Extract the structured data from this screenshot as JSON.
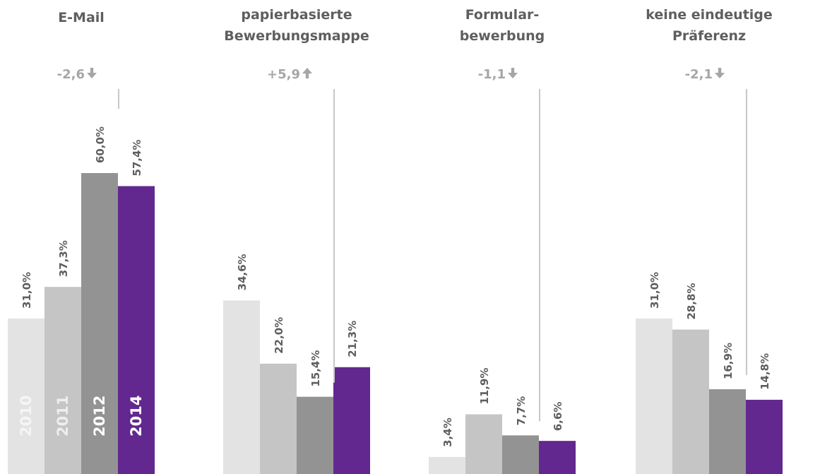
{
  "chart_data": {
    "type": "bar",
    "categories": [
      [
        "E-Mail"
      ],
      [
        "papierbasierte",
        "Bewerbungsmappe"
      ],
      [
        "Formular-",
        "bewerbung"
      ],
      [
        "keine eindeutige",
        "Präferenz"
      ]
    ],
    "series": [
      {
        "name": "2010",
        "color": "#e3e3e3",
        "label_color": "#f5f5f5",
        "values": [
          31.0,
          34.6,
          3.4,
          31.0
        ],
        "value_labels": [
          "31,0%",
          "34,6%",
          "3,4%",
          "31,0%"
        ]
      },
      {
        "name": "2011",
        "color": "#c5c5c6",
        "label_color": "#eeeeee",
        "values": [
          37.3,
          22.0,
          11.9,
          28.8
        ],
        "value_labels": [
          "37,3%",
          "22,0%",
          "11,9%",
          "28,8%"
        ]
      },
      {
        "name": "2012",
        "color": "#939394",
        "label_color": "#ffffff",
        "values": [
          60.0,
          15.4,
          7.7,
          16.9
        ],
        "value_labels": [
          "60,0%",
          "15,4%",
          "7,7%",
          "16,9%"
        ]
      },
      {
        "name": "2014",
        "color": "#62288f",
        "label_color": "#ffffff",
        "values": [
          57.4,
          21.3,
          6.6,
          14.8
        ],
        "value_labels": [
          "57,4%",
          "21,3%",
          "6,6%",
          "14,8%"
        ]
      }
    ],
    "changes": [
      {
        "text": "-2,6",
        "direction": "down"
      },
      {
        "text": "+5,9",
        "direction": "up"
      },
      {
        "text": "-1,1",
        "direction": "down"
      },
      {
        "text": "-2,1",
        "direction": "down"
      }
    ],
    "ylim": [
      0,
      60
    ],
    "grid": false,
    "legend": "year labels inside first group's bars",
    "colors": {
      "text": "#5e5e5e",
      "change_text": "#a6a6a6",
      "leader_line": "#c8c8c8"
    }
  }
}
